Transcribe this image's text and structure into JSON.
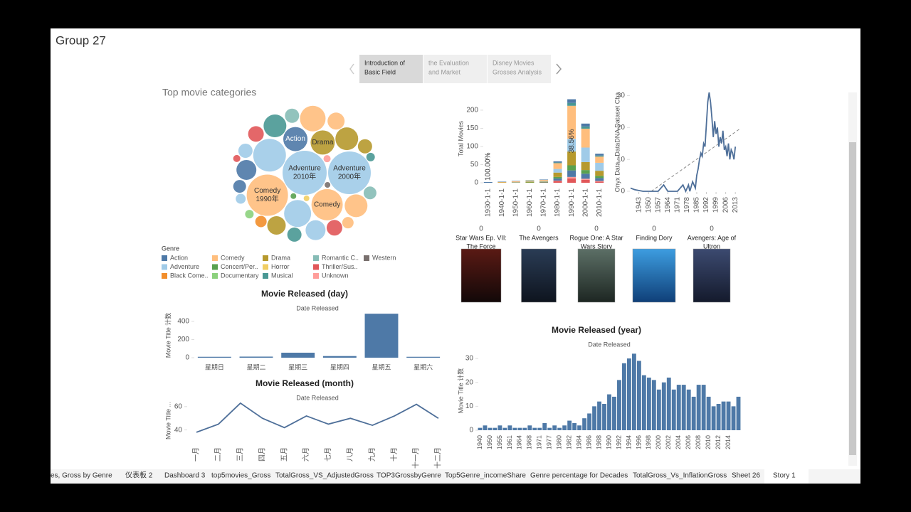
{
  "header": {
    "title": "Group 27"
  },
  "story_points": [
    [
      "Introduction of",
      "Basic Field"
    ],
    [
      "the Evaluation",
      "and Market"
    ],
    [
      "Disney Movies",
      "Grosses Analysis"
    ]
  ],
  "active_story_point": 0,
  "chart_data": [
    {
      "type": "bubble",
      "title": "Top movie categories",
      "legend_title": "Genre",
      "legend": [
        {
          "label": "Action",
          "color": "#4e79a7"
        },
        {
          "label": "Adventure",
          "color": "#a0cbe8"
        },
        {
          "label": "Black Come..",
          "color": "#f28e2b"
        },
        {
          "label": "Comedy",
          "color": "#ffbe7d"
        },
        {
          "label": "Concert/Per..",
          "color": "#59a14f"
        },
        {
          "label": "Documentary",
          "color": "#8cd17d"
        },
        {
          "label": "Drama",
          "color": "#b6992d"
        },
        {
          "label": "Horror",
          "color": "#f1ce63"
        },
        {
          "label": "Musical",
          "color": "#499894"
        },
        {
          "label": "Romantic C..",
          "color": "#86bcb6"
        },
        {
          "label": "Thriller/Sus..",
          "color": "#e15759"
        },
        {
          "label": "Unknown",
          "color": "#ff9d9a"
        },
        {
          "label": "Western",
          "color": "#79706e"
        }
      ],
      "bubbles": [
        {
          "value": 961,
          "color": "#a0cbe8",
          "label": [
            "Adventure",
            "2010年"
          ]
        },
        {
          "value": 900,
          "color": "#a0cbe8",
          "label": [
            "Adventure",
            "2000年"
          ]
        },
        {
          "value": 841,
          "color": "#ffbe7d",
          "label": [
            "Comedy",
            "1990年"
          ]
        },
        {
          "value": 529,
          "color": "#a0cbe8"
        },
        {
          "value": 484,
          "color": "#ffbe7d",
          "label": [
            "Comedy"
          ]
        },
        {
          "value": 289,
          "color": "#4e79a7",
          "label": [
            "Action"
          ]
        },
        {
          "value": 289,
          "color": "#b6992d",
          "label": [
            "Drama"
          ]
        },
        {
          "value": 361,
          "color": "#a0cbe8"
        },
        {
          "value": 324,
          "color": "#ffbe7d"
        },
        {
          "value": 256,
          "color": "#b6992d"
        },
        {
          "value": 256,
          "color": "#499894"
        },
        {
          "value": 196,
          "color": "#4e79a7"
        },
        {
          "value": 256,
          "color": "#ffbe7d"
        },
        {
          "value": 196,
          "color": "#a0cbe8"
        },
        {
          "value": 169,
          "color": "#b6992d"
        },
        {
          "value": 144,
          "color": "#ffbe7d"
        },
        {
          "value": 121,
          "color": "#e15759"
        },
        {
          "value": 121,
          "color": "#e15759"
        },
        {
          "value": 100,
          "color": "#86bcb6"
        },
        {
          "value": 100,
          "color": "#a0cbe8"
        },
        {
          "value": 100,
          "color": "#499894"
        },
        {
          "value": 100,
          "color": "#b6992d"
        },
        {
          "value": 81,
          "color": "#4e79a7"
        },
        {
          "value": 81,
          "color": "#86bcb6"
        },
        {
          "value": 64,
          "color": "#f28e2b"
        },
        {
          "value": 64,
          "color": "#ffbe7d"
        },
        {
          "value": 49,
          "color": "#a0cbe8"
        },
        {
          "value": 36,
          "color": "#499894"
        },
        {
          "value": 36,
          "color": "#8cd17d"
        },
        {
          "value": 25,
          "color": "#ff9d9a"
        },
        {
          "value": 25,
          "color": "#e15759"
        },
        {
          "value": 16,
          "color": "#79706e"
        },
        {
          "value": 16,
          "color": "#f1ce63"
        },
        {
          "value": 16,
          "color": "#59a14f"
        }
      ]
    },
    {
      "type": "stacked_bar",
      "y_label": "Total Movies",
      "categories": [
        "1930-1-1",
        "1940-1-1",
        "1950-1-1",
        "1960-1-1",
        "1970-1-1",
        "1980-1-1",
        "1990-1-1",
        "2000-1-1",
        "2010-1-1"
      ],
      "series": [
        {
          "color": "#e15759",
          "values": [
            0,
            0,
            0,
            0,
            0,
            5,
            12,
            8,
            3
          ]
        },
        {
          "color": "#ff9d9a",
          "values": [
            0,
            0,
            0,
            0,
            0,
            1,
            4,
            3,
            2
          ]
        },
        {
          "color": "#4e79a7",
          "values": [
            0,
            0,
            0,
            0,
            1,
            6,
            18,
            14,
            8
          ]
        },
        {
          "color": "#59a14f",
          "values": [
            0,
            0,
            0,
            1,
            0,
            4,
            14,
            10,
            6
          ]
        },
        {
          "color": "#b6992d",
          "values": [
            0,
            1,
            1,
            2,
            2,
            12,
            38,
            22,
            14
          ]
        },
        {
          "color": "#a0cbe8",
          "values": [
            0,
            0,
            1,
            1,
            2,
            10,
            35,
            40,
            22
          ]
        },
        {
          "color": "#ffbe7d",
          "values": [
            0,
            1,
            2,
            2,
            3,
            16,
            91,
            52,
            17
          ]
        },
        {
          "color": "#499894",
          "values": [
            0,
            0,
            0,
            1,
            0,
            2,
            8,
            6,
            3
          ]
        },
        {
          "color": "#4e79a7",
          "values": [
            2,
            1,
            1,
            0,
            1,
            3,
            10,
            8,
            5
          ]
        }
      ],
      "share_labels": [
        "100.00%",
        null,
        null,
        null,
        null,
        null,
        "38.56%",
        null,
        null
      ],
      "ylim": [
        0,
        239
      ],
      "yticks": [
        0,
        50,
        100,
        150,
        200
      ]
    },
    {
      "type": "line",
      "y_label": "Onyx Data - DataDNA Dataset Cha",
      "x": [
        1937,
        1940,
        1946,
        1950,
        1955,
        1957,
        1961,
        1964,
        1967,
        1971,
        1975,
        1977,
        1979,
        1980,
        1982,
        1984,
        1985,
        1986,
        1987,
        1988,
        1989,
        1990,
        1991,
        1992,
        1993,
        1994,
        1995,
        1996,
        1997,
        1998,
        1999,
        2000,
        2001,
        2002,
        2003,
        2004,
        2005,
        2006,
        2007,
        2008,
        2009,
        2010,
        2011,
        2012,
        2013
      ],
      "values": [
        1,
        0.5,
        0,
        0,
        0,
        0,
        2,
        0,
        0,
        0,
        2,
        0,
        2,
        0,
        3,
        1,
        5,
        7,
        10,
        12,
        11,
        15,
        14,
        21,
        28,
        31,
        28,
        23,
        17,
        22,
        18,
        20,
        14,
        17,
        15,
        19,
        13,
        14,
        11,
        15,
        10,
        13,
        12,
        10,
        14
      ],
      "xlim": [
        1937,
        2016
      ],
      "xticks": [
        1943,
        1950,
        1957,
        1964,
        1971,
        1978,
        1985,
        1992,
        1999,
        2006,
        2013
      ],
      "ylim": [
        0,
        31
      ],
      "yticks": [
        0,
        10,
        20,
        30
      ],
      "trend": {
        "x": [
          1952,
          2016
        ],
        "y": [
          0,
          19.5
        ]
      },
      "color": "#4e6f99"
    },
    {
      "type": "bar",
      "title": "Movie Released  (day)",
      "subtitle": "Date Released",
      "y_label": "Movie Title 计数",
      "categories": [
        "星期日",
        "星期二",
        "星期三",
        "星期四",
        "星期五",
        "星期六"
      ],
      "values": [
        10,
        12,
        55,
        18,
        485,
        10
      ],
      "ylim": [
        0,
        494
      ],
      "yticks": [
        0,
        200,
        400
      ],
      "color": "#4e79a7"
    },
    {
      "type": "line",
      "title": "Movie Released  (month)",
      "subtitle": "Date Released",
      "y_label": "Movie Title ...",
      "categories": [
        "一月",
        "二月",
        "三月",
        "四月",
        "五月",
        "六月",
        "七月",
        "八月",
        "九月",
        "十月",
        "十一月",
        "十二月"
      ],
      "values": [
        38,
        45,
        63,
        50,
        42,
        52,
        45,
        50,
        44,
        52,
        62,
        50
      ],
      "ylim": [
        30,
        66
      ],
      "yticks": [
        40,
        60
      ],
      "color": "#4e6f99"
    },
    {
      "type": "bar",
      "title": "Movie Released  (year)",
      "subtitle": "Date Released",
      "y_label": "Movie Title 计数",
      "categories": [
        "1940",
        null,
        "1950",
        null,
        "1955",
        null,
        "1961",
        null,
        "1964",
        null,
        "1968",
        null,
        "1971",
        null,
        "1977",
        null,
        "1980",
        null,
        "1982",
        null,
        "1984",
        null,
        "1986",
        null,
        "1988",
        null,
        "1990",
        null,
        "1992",
        null,
        "1994",
        null,
        "1996",
        null,
        "1998",
        null,
        "2000",
        null,
        "2002",
        null,
        "2004",
        null,
        "2006",
        null,
        "2008",
        null,
        "2010",
        null,
        "2012",
        null,
        "2014",
        null,
        null
      ],
      "values": [
        1,
        2,
        1,
        1,
        2,
        1,
        2,
        1,
        1,
        1,
        2,
        1,
        1,
        3,
        1,
        2,
        1,
        2,
        4,
        3,
        2,
        5,
        7,
        10,
        12,
        11,
        15,
        14,
        21,
        28,
        30,
        32,
        29,
        23,
        22,
        21,
        17,
        20,
        22,
        17,
        19,
        19,
        17,
        14,
        19,
        19,
        14,
        10,
        11,
        12,
        12,
        10,
        14
      ],
      "ylim": [
        0,
        33
      ],
      "yticks": [
        0,
        10,
        20,
        30
      ],
      "color": "#4e79a7"
    }
  ],
  "posters": [
    {
      "value": 0,
      "title": [
        "Star Wars Ep. VII:",
        "The Force"
      ]
    },
    {
      "value": 0,
      "title": [
        "The Avengers"
      ]
    },
    {
      "value": 0,
      "title": [
        "Rogue One: A Star",
        "Wars Story"
      ]
    },
    {
      "value": 0,
      "title": [
        "Finding Dory"
      ]
    },
    {
      "value": 0,
      "title": [
        "Avengers: Age of",
        "Ultron"
      ]
    }
  ],
  "tabs": [
    "es, Gross by Genre",
    "仪表板 2",
    "Dashboard 3",
    "top5movies_Gross",
    "TotalGross_VS_AdjustedGross",
    "TOP3GrossbyGenre",
    "Top5Genre_incomeShare",
    "Genre percentage for Decades",
    "TotalGross_Vs_InflationGross",
    "Sheet 26",
    "Story 1"
  ],
  "active_tab": 10
}
